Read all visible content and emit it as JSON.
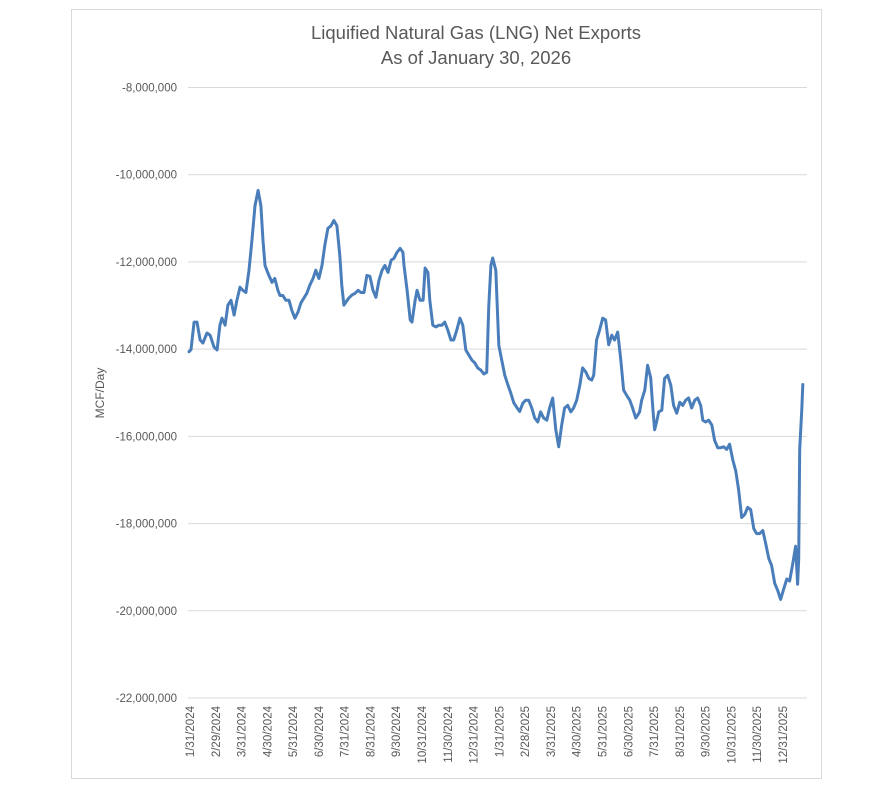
{
  "chart_data": {
    "type": "line",
    "title": "Liquified Natural Gas (LNG) Net Exports",
    "subtitle": "As of January 30, 2026",
    "xlabel": "",
    "ylabel": "MCF/Day",
    "ylim": [
      -22000000,
      -8000000
    ],
    "yticks": [
      -8000000,
      -10000000,
      -12000000,
      -14000000,
      -16000000,
      -18000000,
      -20000000,
      -22000000
    ],
    "ytick_labels": [
      "-8,000,000",
      "-10,000,000",
      "-12,000,000",
      "-14,000,000",
      "-16,000,000",
      "-18,000,000",
      "-20,000,000",
      "-22,000,000"
    ],
    "grid": true,
    "legend": "none",
    "xtick_labels": [
      "1/31/2024",
      "2/29/2024",
      "3/31/2024",
      "4/30/2024",
      "5/31/2024",
      "6/30/2024",
      "7/31/2024",
      "8/31/2024",
      "9/30/2024",
      "10/31/2024",
      "11/30/2024",
      "12/31/2024",
      "1/31/2025",
      "2/28/2025",
      "3/31/2025",
      "4/30/2025",
      "5/31/2025",
      "6/30/2025",
      "7/31/2025",
      "8/31/2025",
      "9/30/2025",
      "10/31/2025",
      "11/30/2025",
      "12/31/2025"
    ],
    "x_range_months": [
      -0.05,
      24.0
    ],
    "series": [
      {
        "name": "LNG Net Exports",
        "color": "#4a7ebb",
        "x_months": [
          -0.04,
          0.04,
          0.16,
          0.27,
          0.39,
          0.5,
          0.66,
          0.78,
          0.93,
          1.05,
          1.16,
          1.24,
          1.36,
          1.47,
          1.59,
          1.71,
          1.82,
          1.94,
          2.05,
          2.17,
          2.29,
          2.4,
          2.52,
          2.64,
          2.75,
          2.83,
          2.91,
          2.98,
          3.06,
          3.18,
          3.29,
          3.41,
          3.49,
          3.6,
          3.72,
          3.84,
          3.95,
          4.07,
          4.19,
          4.3,
          4.42,
          4.53,
          4.65,
          4.77,
          4.88,
          5.0,
          5.12,
          5.23,
          5.35,
          5.47,
          5.58,
          5.7,
          5.81,
          5.89,
          5.97,
          6.05,
          6.16,
          6.28,
          6.4,
          6.52,
          6.63,
          6.75,
          6.86,
          6.98,
          7.1,
          7.21,
          7.33,
          7.45,
          7.56,
          7.68,
          7.8,
          7.91,
          8.03,
          8.15,
          8.26,
          8.3,
          8.42,
          8.54,
          8.61,
          8.73,
          8.81,
          8.92,
          9.04,
          9.12,
          9.23,
          9.3,
          9.42,
          9.54,
          9.65,
          9.77,
          9.88,
          10.0,
          10.12,
          10.23,
          10.35,
          10.47,
          10.58,
          10.7,
          10.81,
          10.93,
          11.05,
          11.16,
          11.28,
          11.4,
          11.51,
          11.59,
          11.67,
          11.74,
          11.86,
          11.98,
          12.09,
          12.21,
          12.33,
          12.44,
          12.56,
          12.68,
          12.79,
          12.91,
          13.02,
          13.14,
          13.26,
          13.37,
          13.49,
          13.6,
          13.72,
          13.84,
          13.95,
          14.07,
          14.19,
          14.3,
          14.42,
          14.53,
          14.65,
          14.77,
          14.88,
          15.0,
          15.12,
          15.23,
          15.35,
          15.47,
          15.58,
          15.66,
          15.77,
          15.89,
          16.01,
          16.12,
          16.24,
          16.36,
          16.47,
          16.59,
          16.71,
          16.82,
          16.94,
          17.06,
          17.17,
          17.29,
          17.37,
          17.44,
          17.52,
          17.64,
          17.75,
          17.87,
          17.95,
          18.02,
          18.1,
          18.18,
          18.3,
          18.41,
          18.53,
          18.65,
          18.76,
          18.88,
          19.0,
          19.11,
          19.23,
          19.34,
          19.46,
          19.58,
          19.69,
          19.81,
          19.89,
          20.0,
          20.12,
          20.24,
          20.35,
          20.47,
          20.59,
          20.7,
          20.82,
          20.93,
          21.05,
          21.17,
          21.28,
          21.4,
          21.52,
          21.63,
          21.75,
          21.87,
          21.98,
          22.1,
          22.22,
          22.33,
          22.45,
          22.56,
          22.68,
          22.8,
          22.91,
          23.03,
          23.15,
          23.26,
          23.38,
          23.49,
          23.57,
          23.61,
          23.65,
          23.73,
          23.77
        ],
        "values": [
          -14060000,
          -14010000,
          -13380000,
          -13380000,
          -13790000,
          -13860000,
          -13630000,
          -13680000,
          -13950000,
          -14020000,
          -13450000,
          -13290000,
          -13450000,
          -12990000,
          -12880000,
          -13220000,
          -12880000,
          -12580000,
          -12650000,
          -12700000,
          -12190000,
          -11510000,
          -10710000,
          -10360000,
          -10710000,
          -11510000,
          -12080000,
          -12190000,
          -12310000,
          -12470000,
          -12380000,
          -12650000,
          -12770000,
          -12770000,
          -12880000,
          -12880000,
          -13110000,
          -13290000,
          -13150000,
          -12940000,
          -12830000,
          -12720000,
          -12530000,
          -12380000,
          -12190000,
          -12380000,
          -12080000,
          -11620000,
          -11230000,
          -11170000,
          -11050000,
          -11170000,
          -11850000,
          -12540000,
          -12990000,
          -12920000,
          -12830000,
          -12760000,
          -12720000,
          -12650000,
          -12700000,
          -12700000,
          -12310000,
          -12330000,
          -12650000,
          -12810000,
          -12420000,
          -12190000,
          -12080000,
          -12240000,
          -11960000,
          -11920000,
          -11780000,
          -11690000,
          -11780000,
          -12080000,
          -12650000,
          -13330000,
          -13380000,
          -12880000,
          -12650000,
          -12880000,
          -12880000,
          -12140000,
          -12240000,
          -12880000,
          -13450000,
          -13490000,
          -13450000,
          -13450000,
          -13380000,
          -13560000,
          -13790000,
          -13790000,
          -13560000,
          -13290000,
          -13450000,
          -14020000,
          -14130000,
          -14250000,
          -14320000,
          -14430000,
          -14480000,
          -14570000,
          -14530000,
          -13000000,
          -12080000,
          -11910000,
          -12190000,
          -13910000,
          -14250000,
          -14600000,
          -14820000,
          -15000000,
          -15230000,
          -15340000,
          -15430000,
          -15240000,
          -15170000,
          -15170000,
          -15350000,
          -15580000,
          -15670000,
          -15440000,
          -15580000,
          -15630000,
          -15350000,
          -15120000,
          -15850000,
          -16240000,
          -15740000,
          -15350000,
          -15290000,
          -15440000,
          -15350000,
          -15170000,
          -14830000,
          -14430000,
          -14520000,
          -14670000,
          -14710000,
          -14600000,
          -13790000,
          -13560000,
          -13290000,
          -13330000,
          -13900000,
          -13680000,
          -13790000,
          -13610000,
          -14250000,
          -14940000,
          -15060000,
          -15170000,
          -15350000,
          -15580000,
          -15510000,
          -15440000,
          -15170000,
          -14940000,
          -14370000,
          -14660000,
          -15350000,
          -15850000,
          -15670000,
          -15440000,
          -15400000,
          -14670000,
          -14600000,
          -14830000,
          -15290000,
          -15470000,
          -15220000,
          -15290000,
          -15170000,
          -15120000,
          -15350000,
          -15170000,
          -15120000,
          -15290000,
          -15630000,
          -15670000,
          -15630000,
          -15740000,
          -16090000,
          -16260000,
          -16260000,
          -16240000,
          -16300000,
          -16180000,
          -16530000,
          -16800000,
          -17220000,
          -17860000,
          -17790000,
          -17630000,
          -17680000,
          -18120000,
          -18230000,
          -18230000,
          -18160000,
          -18460000,
          -18800000,
          -18960000,
          -19370000,
          -19540000,
          -19740000,
          -19500000,
          -19270000,
          -19320000,
          -18930000,
          -18520000,
          -19390000,
          -18810000,
          -16300000,
          -15380000,
          -14810000,
          -14550000
        ]
      }
    ]
  }
}
